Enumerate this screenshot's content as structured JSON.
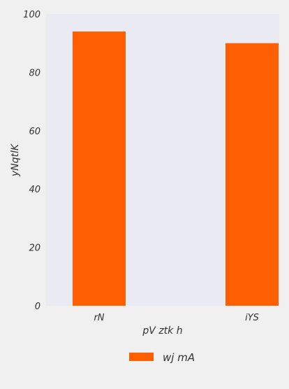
{
  "chart_data": {
    "type": "bar",
    "categories": [
      "rN",
      "iYS"
    ],
    "series": [
      {
        "name": "wj mA",
        "values": [
          94,
          90
        ]
      }
    ],
    "xlabel": "pV  ztk h",
    "ylabel": "yNqtlK",
    "ylim": [
      0,
      100
    ],
    "yticks": [
      0,
      20,
      40,
      60,
      80,
      100
    ],
    "grid": false,
    "legend_position": "bottom-center",
    "colors": {
      "bar": "#ff5f00",
      "plot_background": "#eaeaf2",
      "figure_background": "#f0f0f0",
      "text": "#333333"
    }
  }
}
